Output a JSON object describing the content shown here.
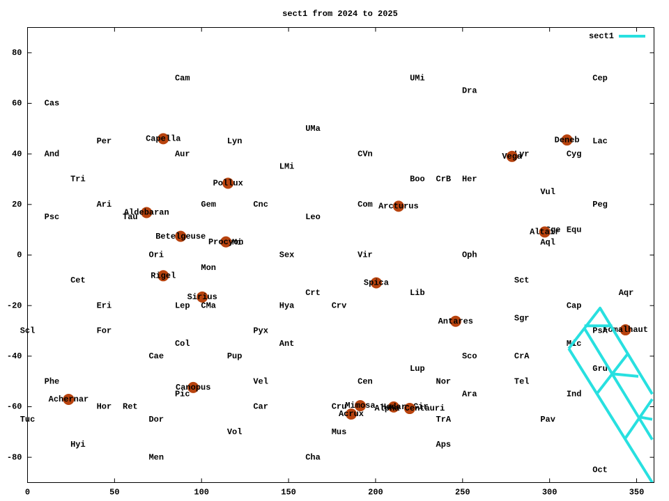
{
  "chart_data": {
    "type": "line",
    "title": "sect1 from 2024 to 2025",
    "xlim": [
      0,
      360
    ],
    "ylim": [
      -90,
      90
    ],
    "xticks": [
      0,
      50,
      100,
      150,
      200,
      250,
      300,
      350
    ],
    "yticks": [
      -80,
      -60,
      -40,
      -20,
      0,
      20,
      40,
      60,
      80
    ],
    "legend": "upper right",
    "x": [
      311,
      329,
      359,
      null,
      311,
      359,
      null,
      320,
      359,
      null,
      327,
      345,
      null,
      343,
      359,
      null,
      320,
      336,
      null,
      336,
      351,
      null,
      351,
      359
    ],
    "series": [
      {
        "name": "sect1",
        "color": "#28e0e0",
        "values": [
          -37,
          -21,
          -55,
          null,
          -37,
          -90,
          null,
          -29,
          -73,
          null,
          -55,
          -39,
          null,
          -73,
          -57,
          null,
          -28,
          -28,
          null,
          -47,
          -48,
          null,
          -64,
          -65
        ]
      }
    ],
    "star_color": "#b8430e",
    "labels": [
      {
        "text": "Cam",
        "x": 89,
        "y": 70
      },
      {
        "text": "UMi",
        "x": 224,
        "y": 70
      },
      {
        "text": "Cep",
        "x": 329,
        "y": 70
      },
      {
        "text": "Dra",
        "x": 254,
        "y": 65
      },
      {
        "text": "Cas",
        "x": 14,
        "y": 60
      },
      {
        "text": "UMa",
        "x": 164,
        "y": 50
      },
      {
        "text": "Per",
        "x": 44,
        "y": 45
      },
      {
        "text": "Lyn",
        "x": 119,
        "y": 45
      },
      {
        "text": "Lac",
        "x": 329,
        "y": 45
      },
      {
        "text": "And",
        "x": 14,
        "y": 40
      },
      {
        "text": "Aur",
        "x": 89,
        "y": 40
      },
      {
        "text": "CVn",
        "x": 194,
        "y": 40
      },
      {
        "text": "Lyr",
        "x": 284,
        "y": 40
      },
      {
        "text": "Cyg",
        "x": 314,
        "y": 40
      },
      {
        "text": "LMi",
        "x": 149,
        "y": 35
      },
      {
        "text": "Tri",
        "x": 29,
        "y": 30
      },
      {
        "text": "Boo",
        "x": 224,
        "y": 30
      },
      {
        "text": "CrB",
        "x": 239,
        "y": 30
      },
      {
        "text": "Her",
        "x": 254,
        "y": 30
      },
      {
        "text": "Vul",
        "x": 299,
        "y": 25
      },
      {
        "text": "Ari",
        "x": 44,
        "y": 20
      },
      {
        "text": "Gem",
        "x": 104,
        "y": 20
      },
      {
        "text": "Cnc",
        "x": 134,
        "y": 20
      },
      {
        "text": "Com",
        "x": 194,
        "y": 20
      },
      {
        "text": "Peg",
        "x": 329,
        "y": 20
      },
      {
        "text": "Psc",
        "x": 14,
        "y": 15
      },
      {
        "text": "Tau",
        "x": 59,
        "y": 15
      },
      {
        "text": "Leo",
        "x": 164,
        "y": 15
      },
      {
        "text": "Sge",
        "x": 302,
        "y": 10
      },
      {
        "text": "Equ",
        "x": 314,
        "y": 10
      },
      {
        "text": "CMi",
        "x": 119,
        "y": 5
      },
      {
        "text": "Aql",
        "x": 299,
        "y": 5
      },
      {
        "text": "Ori",
        "x": 74,
        "y": 0
      },
      {
        "text": "Sex",
        "x": 149,
        "y": 0
      },
      {
        "text": "Vir",
        "x": 194,
        "y": 0
      },
      {
        "text": "Oph",
        "x": 254,
        "y": 0
      },
      {
        "text": "Mon",
        "x": 104,
        "y": -5
      },
      {
        "text": "Cet",
        "x": 29,
        "y": -10
      },
      {
        "text": "Sct",
        "x": 284,
        "y": -10
      },
      {
        "text": "Crt",
        "x": 164,
        "y": -15
      },
      {
        "text": "Lib",
        "x": 224,
        "y": -15
      },
      {
        "text": "Aqr",
        "x": 344,
        "y": -15
      },
      {
        "text": "Eri",
        "x": 44,
        "y": -20
      },
      {
        "text": "Lep",
        "x": 89,
        "y": -20
      },
      {
        "text": "CMa",
        "x": 104,
        "y": -20
      },
      {
        "text": "Hya",
        "x": 149,
        "y": -20
      },
      {
        "text": "Crv",
        "x": 179,
        "y": -20
      },
      {
        "text": "Cap",
        "x": 314,
        "y": -20
      },
      {
        "text": "Sgr",
        "x": 284,
        "y": -25
      },
      {
        "text": "Scl",
        "x": 0,
        "y": -30
      },
      {
        "text": "For",
        "x": 44,
        "y": -30
      },
      {
        "text": "Pyx",
        "x": 134,
        "y": -30
      },
      {
        "text": "PsA",
        "x": 329,
        "y": -30
      },
      {
        "text": "Col",
        "x": 89,
        "y": -35
      },
      {
        "text": "Ant",
        "x": 149,
        "y": -35
      },
      {
        "text": "Mic",
        "x": 314,
        "y": -35
      },
      {
        "text": "Cae",
        "x": 74,
        "y": -40
      },
      {
        "text": "Pup",
        "x": 119,
        "y": -40
      },
      {
        "text": "Sco",
        "x": 254,
        "y": -40
      },
      {
        "text": "CrA",
        "x": 284,
        "y": -40
      },
      {
        "text": "Lup",
        "x": 224,
        "y": -45
      },
      {
        "text": "Gru",
        "x": 329,
        "y": -45
      },
      {
        "text": "Phe",
        "x": 14,
        "y": -50
      },
      {
        "text": "Vel",
        "x": 134,
        "y": -50
      },
      {
        "text": "Cen",
        "x": 194,
        "y": -50
      },
      {
        "text": "Nor",
        "x": 239,
        "y": -50
      },
      {
        "text": "Tel",
        "x": 284,
        "y": -50
      },
      {
        "text": "Pic",
        "x": 89,
        "y": -55
      },
      {
        "text": "Ara",
        "x": 254,
        "y": -55
      },
      {
        "text": "Ind",
        "x": 314,
        "y": -55
      },
      {
        "text": "Hor",
        "x": 44,
        "y": -60
      },
      {
        "text": "Ret",
        "x": 59,
        "y": -60
      },
      {
        "text": "Car",
        "x": 134,
        "y": -60
      },
      {
        "text": "Cru",
        "x": 179,
        "y": -60
      },
      {
        "text": "Cir",
        "x": 226,
        "y": -60
      },
      {
        "text": "Tuc",
        "x": 0,
        "y": -65
      },
      {
        "text": "Dor",
        "x": 74,
        "y": -65
      },
      {
        "text": "TrA",
        "x": 239,
        "y": -65
      },
      {
        "text": "Pav",
        "x": 299,
        "y": -65
      },
      {
        "text": "Vol",
        "x": 119,
        "y": -70
      },
      {
        "text": "Mus",
        "x": 179,
        "y": -70
      },
      {
        "text": "Hyi",
        "x": 29,
        "y": -75
      },
      {
        "text": "Aps",
        "x": 239,
        "y": -75
      },
      {
        "text": "Men",
        "x": 74,
        "y": -80
      },
      {
        "text": "Cha",
        "x": 164,
        "y": -80
      },
      {
        "text": "Oct",
        "x": 329,
        "y": -85
      }
    ],
    "stars": [
      {
        "name": "Capella",
        "x": 78,
        "y": 46
      },
      {
        "name": "Deneb",
        "x": 310,
        "y": 45.5
      },
      {
        "name": "Vega",
        "x": 278.4,
        "y": 39
      },
      {
        "name": "Pollux",
        "x": 115.2,
        "y": 28.4
      },
      {
        "name": "Arcturus",
        "x": 213.2,
        "y": 19.3
      },
      {
        "name": "Aldebaran",
        "x": 68.4,
        "y": 16.8
      },
      {
        "name": "Altair",
        "x": 297.2,
        "y": 9.1
      },
      {
        "name": "Betelgeuse",
        "x": 88,
        "y": 7.4
      },
      {
        "name": "Procyon",
        "x": 114,
        "y": 5.2
      },
      {
        "name": "Rigel",
        "x": 78,
        "y": -8.2
      },
      {
        "name": "Spica",
        "x": 200.4,
        "y": -11
      },
      {
        "name": "Sirius",
        "x": 100.4,
        "y": -16.6
      },
      {
        "name": "Antares",
        "x": 246,
        "y": -26.2
      },
      {
        "name": "Fomalhaut",
        "x": 343.6,
        "y": -29.6
      },
      {
        "name": "Canopus",
        "x": 95.2,
        "y": -52.4
      },
      {
        "name": "Achernar",
        "x": 23.6,
        "y": -57.1
      },
      {
        "name": "Mimosa",
        "x": 191.2,
        "y": -59.6
      },
      {
        "name": "Hadar",
        "x": 210.4,
        "y": -60.1
      },
      {
        "name": "Alpha Centauri",
        "x": 219.6,
        "y": -60.7
      },
      {
        "name": "Acrux",
        "x": 186,
        "y": -62.9
      }
    ]
  }
}
